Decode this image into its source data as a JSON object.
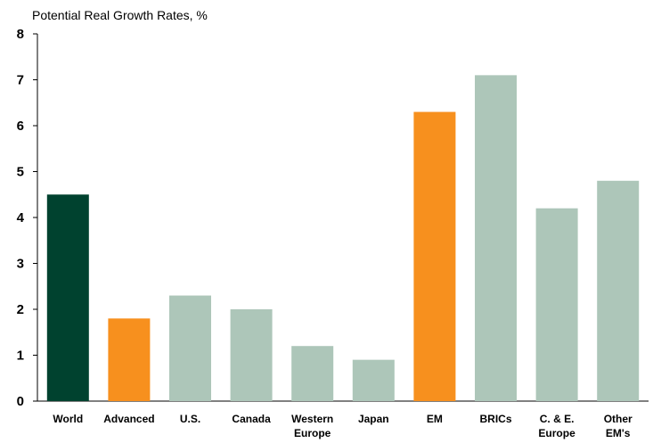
{
  "chart_data": {
    "type": "bar",
    "title": "Potential Real Growth Rates, %",
    "xlabel": "",
    "ylabel": "",
    "ylim": [
      0,
      8
    ],
    "yticks": [
      0,
      1,
      2,
      3,
      4,
      5,
      6,
      7,
      8
    ],
    "grid": false,
    "categories": [
      [
        "World"
      ],
      [
        "Advanced"
      ],
      [
        "U.S."
      ],
      [
        "Canada"
      ],
      [
        "Western",
        "Europe"
      ],
      [
        "Japan"
      ],
      [
        "EM"
      ],
      [
        "BRICs"
      ],
      [
        "C. & E.",
        "Europe"
      ],
      [
        "Other",
        "EM's"
      ]
    ],
    "values": [
      4.5,
      1.8,
      2.3,
      2.0,
      1.2,
      0.9,
      6.3,
      7.1,
      4.2,
      4.8
    ],
    "bar_colors": [
      "#00422f",
      "#f7901e",
      "#adc6b9",
      "#adc6b9",
      "#adc6b9",
      "#adc6b9",
      "#f7901e",
      "#adc6b9",
      "#adc6b9",
      "#adc6b9"
    ]
  }
}
